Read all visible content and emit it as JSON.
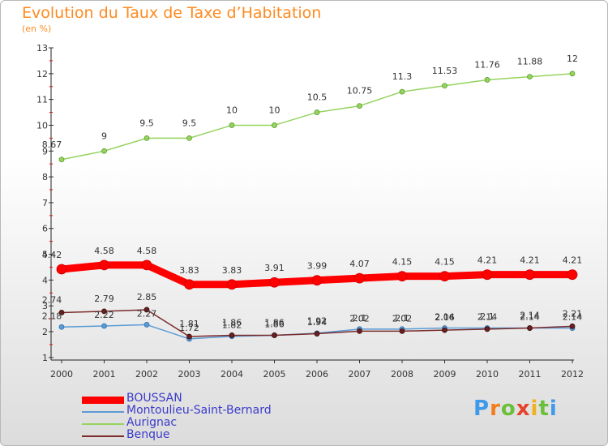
{
  "chart": {
    "title": "Evolution du Taux de Taxe d’Habitation",
    "unit_label": "(en %)"
  },
  "brand": {
    "letters": [
      "P",
      "r",
      "o",
      "x",
      "i",
      "t",
      "i"
    ],
    "colors": [
      "#3d9be9",
      "#f27d1a",
      "#6bbf3b",
      "#e8422e",
      "#f2b01a",
      "#6bbf3b",
      "#3d9be9"
    ]
  },
  "chart_data": {
    "type": "line",
    "title": "Evolution du Taux de Taxe d’Habitation",
    "ylabel": "(en %)",
    "xlabel": "",
    "x": [
      "2000",
      "2001",
      "2002",
      "2003",
      "2004",
      "2005",
      "2006",
      "2007",
      "2008",
      "2009",
      "2010",
      "2011",
      "2012"
    ],
    "yticks": [
      "1",
      "2",
      "3",
      "4",
      "5",
      "6",
      "7",
      "8",
      "9",
      "10",
      "11",
      "12",
      "13"
    ],
    "ylim": [
      0.9,
      13
    ],
    "grid": false,
    "legend_position": "bottom-left",
    "series": [
      {
        "name": "BOUSSAN",
        "color": "#ff0000",
        "values": [
          4.42,
          4.58,
          4.58,
          3.83,
          3.83,
          3.91,
          3.99,
          4.07,
          4.15,
          4.15,
          4.21,
          4.21,
          4.21
        ],
        "labels": [
          "4.42",
          "4.58",
          "4.58",
          "3.83",
          "3.83",
          "3.91",
          "3.99",
          "4.07",
          "4.15",
          "4.15",
          "4.21",
          "4.21",
          "4.21"
        ]
      },
      {
        "name": "Montoulieu-Saint-Bernard",
        "color": "#5b9bd5",
        "values": [
          2.18,
          2.22,
          2.27,
          1.72,
          1.82,
          1.86,
          1.94,
          2.1,
          2.1,
          2.14,
          2.14,
          2.14,
          2.14
        ],
        "labels": [
          "2.18",
          "2.22",
          "2.27",
          "1.72",
          "1.82",
          "1.86",
          "1.94",
          "2.1",
          "2.1",
          "2.14",
          "2.14",
          "2.14",
          "2.14"
        ]
      },
      {
        "name": "Aurignac",
        "color": "#96d35f",
        "values": [
          8.67,
          9,
          9.5,
          9.5,
          10,
          10,
          10.5,
          10.75,
          11.3,
          11.53,
          11.76,
          11.88,
          12
        ],
        "labels": [
          "8.67",
          "9",
          "9.5",
          "9.5",
          "10",
          "10",
          "10.5",
          "10.75",
          "11.3",
          "11.53",
          "11.76",
          "11.88",
          "12"
        ]
      },
      {
        "name": "Benque",
        "color": "#7b2c2c",
        "values": [
          2.74,
          2.79,
          2.85,
          1.81,
          1.86,
          1.86,
          1.92,
          2.02,
          2.02,
          2.06,
          2.1,
          2.14,
          2.21
        ],
        "labels": [
          "2.74",
          "2.79",
          "2.85",
          "1.81",
          "1.86",
          "1.86",
          "1.92",
          "2.02",
          "2.02",
          "2.06",
          "2.1",
          "2.14",
          "2.21"
        ]
      }
    ]
  }
}
